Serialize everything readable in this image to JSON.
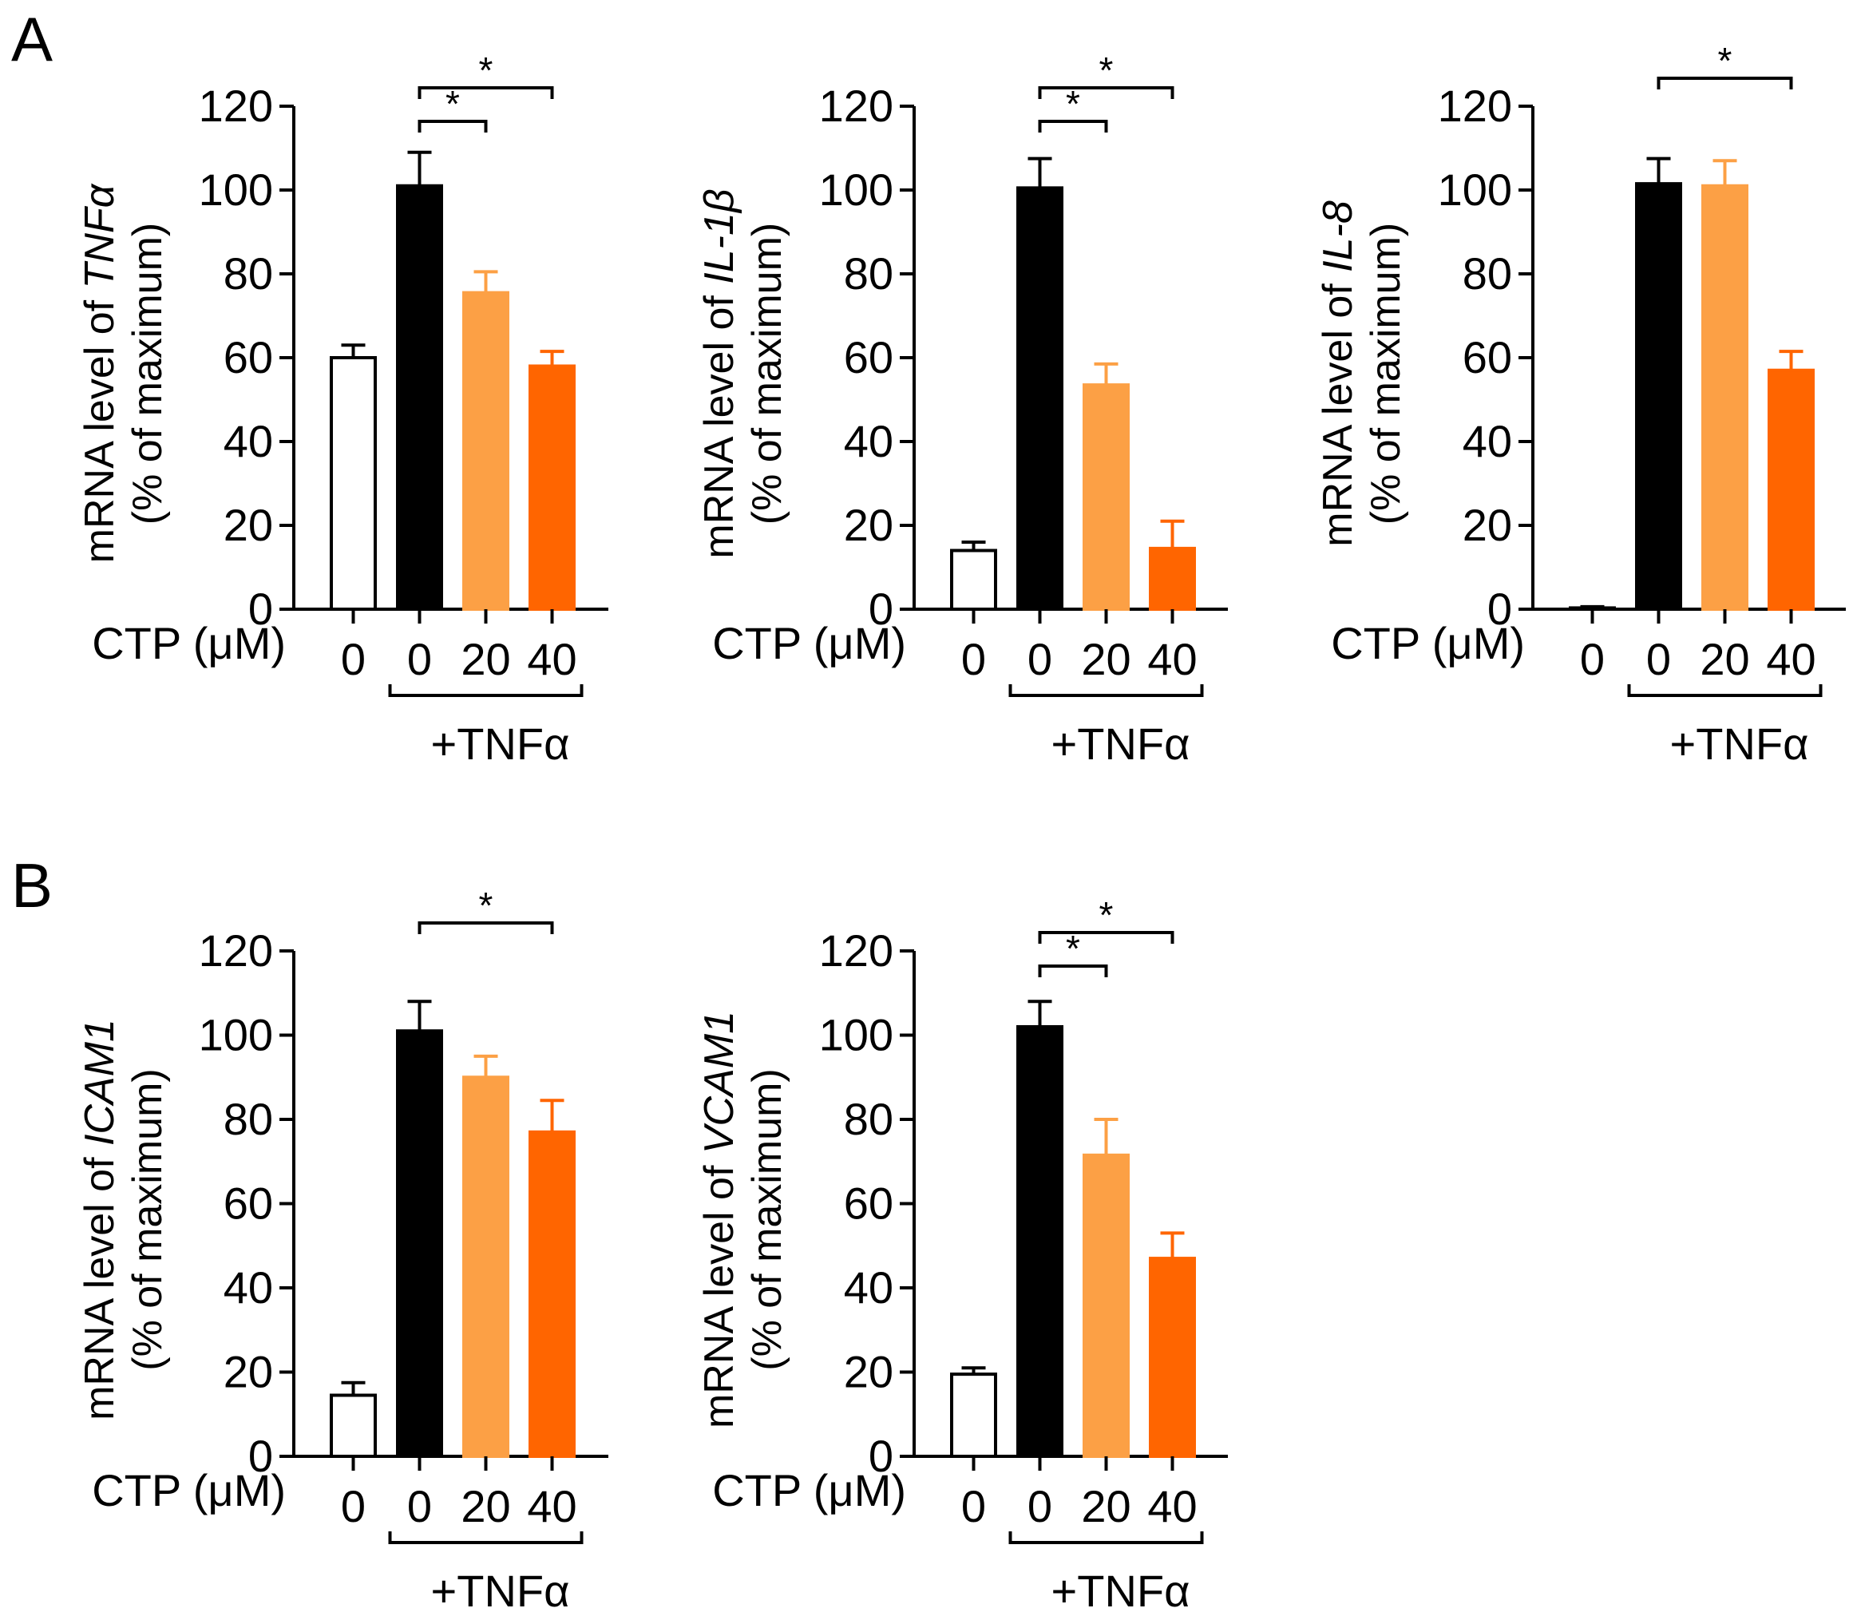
{
  "colors": {
    "control": "#ffffff",
    "tnf_only": "#000000",
    "ctp_20": "#fca045",
    "ctp_40": "#ff6500",
    "axis": "#000000"
  },
  "panel_letters": [
    "A",
    "B"
  ],
  "chart_data": [
    {
      "type": "bar",
      "panel": "A",
      "gene": "TNFα",
      "ylabel_prefix": "mRNA level of ",
      "ylabel_line2": "(% of maximum)",
      "xlabel": "CTP (μM)",
      "categories": [
        "0",
        "0",
        "20",
        "40"
      ],
      "values": [
        60,
        101,
        75.5,
        58
      ],
      "errors": [
        3,
        8,
        5,
        3.5
      ],
      "treatment_label": "+TNFα",
      "yticks": [
        "0",
        "20",
        "40",
        "60",
        "80",
        "100",
        "120"
      ],
      "ylim": [
        0,
        120
      ],
      "significance": [
        {
          "from": 1,
          "to": 2,
          "label": "*"
        },
        {
          "from": 1,
          "to": 3,
          "label": "*"
        }
      ]
    },
    {
      "type": "bar",
      "panel": "A",
      "gene": "IL-1β",
      "ylabel_prefix": "mRNA level of ",
      "ylabel_line2": "(% of maximum)",
      "xlabel": "CTP (μM)",
      "categories": [
        "0",
        "0",
        "20",
        "40"
      ],
      "values": [
        14,
        100.5,
        53.5,
        14.5
      ],
      "errors": [
        2,
        7,
        5,
        6.5
      ],
      "treatment_label": "+TNFα",
      "yticks": [
        "0",
        "20",
        "40",
        "60",
        "80",
        "100",
        "120"
      ],
      "ylim": [
        0,
        120
      ],
      "significance": [
        {
          "from": 1,
          "to": 2,
          "label": "*"
        },
        {
          "from": 1,
          "to": 3,
          "label": "*"
        }
      ]
    },
    {
      "type": "bar",
      "panel": "A",
      "gene": "IL-8",
      "ylabel_prefix": "mRNA level of ",
      "ylabel_line2": "(% of maximum)",
      "xlabel": "CTP (μM)",
      "categories": [
        "0",
        "0",
        "20",
        "40"
      ],
      "values": [
        0.3,
        101.5,
        101,
        57
      ],
      "errors": [
        0.3,
        6,
        6,
        4.5
      ],
      "treatment_label": "+TNFα",
      "yticks": [
        "0",
        "20",
        "40",
        "60",
        "80",
        "100",
        "120"
      ],
      "ylim": [
        0,
        120
      ],
      "significance": [
        {
          "from": 1,
          "to": 3,
          "label": "*"
        }
      ]
    },
    {
      "type": "bar",
      "panel": "B",
      "gene": "ICAM1",
      "ylabel_prefix": "mRNA level of ",
      "ylabel_line2": "(% of maximum)",
      "xlabel": "CTP (μM)",
      "categories": [
        "0",
        "0",
        "20",
        "40"
      ],
      "values": [
        14.5,
        101,
        90,
        77
      ],
      "errors": [
        3,
        7,
        5,
        7.5
      ],
      "treatment_label": "+TNFα",
      "yticks": [
        "0",
        "20",
        "40",
        "60",
        "80",
        "100",
        "120"
      ],
      "ylim": [
        0,
        120
      ],
      "significance": [
        {
          "from": 1,
          "to": 3,
          "label": "*"
        }
      ]
    },
    {
      "type": "bar",
      "panel": "B",
      "gene": "VCAM1",
      "ylabel_prefix": "mRNA level of ",
      "ylabel_line2": "(% of maximum)",
      "xlabel": "CTP (μM)",
      "categories": [
        "0",
        "0",
        "20",
        "40"
      ],
      "values": [
        19.5,
        102,
        71.5,
        47
      ],
      "errors": [
        1.5,
        6,
        8.5,
        6
      ],
      "treatment_label": "+TNFα",
      "yticks": [
        "0",
        "20",
        "40",
        "60",
        "80",
        "100",
        "120"
      ],
      "ylim": [
        0,
        120
      ],
      "significance": [
        {
          "from": 1,
          "to": 2,
          "label": "*"
        },
        {
          "from": 1,
          "to": 3,
          "label": "*"
        }
      ]
    }
  ]
}
